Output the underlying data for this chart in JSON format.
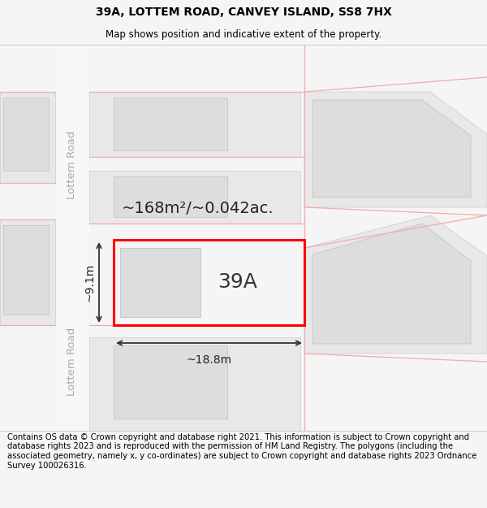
{
  "title_line1": "39A, LOTTEM ROAD, CANVEY ISLAND, SS8 7HX",
  "title_line2": "Map shows position and indicative extent of the property.",
  "footer_text": "Contains OS data © Crown copyright and database right 2021. This information is subject to Crown copyright and database rights 2023 and is reproduced with the permission of HM Land Registry. The polygons (including the associated geometry, namely x, y co-ordinates) are subject to Crown copyright and database rights 2023 Ordnance Survey 100026316.",
  "bg_color": "#f5f5f5",
  "map_bg": "#ffffff",
  "road_label": "Lottem Road",
  "road_label2": "Lottem Road",
  "parcel_label": "39A",
  "area_text": "~168m²/~0.042ac.",
  "width_text": "~18.8m",
  "height_text": "~9.1m",
  "parcel_color": "#ff0000",
  "building_fill": "#dddddd",
  "neighbor_fill": "#e8e8e8",
  "neighbor_stroke": "#cccccc",
  "road_lines_color": "#f5aaaa",
  "dim_line_color": "#333333",
  "title_fontsize": 10,
  "subtitle_fontsize": 8.5,
  "footer_fontsize": 7.2,
  "label_fontsize": 18,
  "area_fontsize": 14,
  "dim_fontsize": 10,
  "road_fontsize": 9.5
}
